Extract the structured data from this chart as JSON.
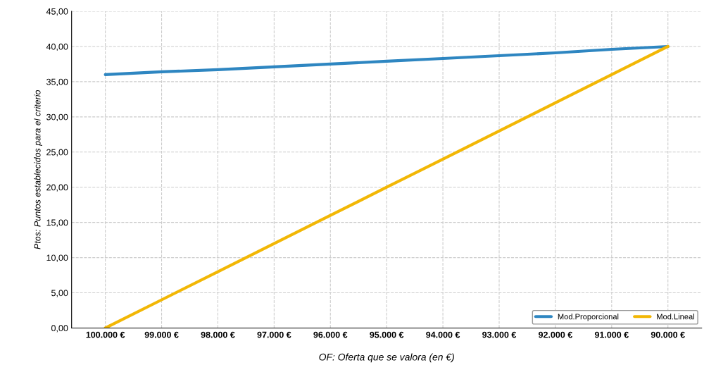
{
  "chart_data": {
    "type": "line",
    "xlabel": "OF: Oferta que se valora (en €)",
    "ylabel": "Ptos: Puntos establecidos para el criterio",
    "categories": [
      "100.000 €",
      "99.000 €",
      "98.000 €",
      "97.000 €",
      "96.000 €",
      "95.000 €",
      "94.000 €",
      "93.000 €",
      "92.000 €",
      "91.000 €",
      "90.000 €"
    ],
    "series": [
      {
        "name": "Mod.Proporcional",
        "color": "#2e86c1",
        "values": [
          36.0,
          36.4,
          36.7,
          37.1,
          37.5,
          37.9,
          38.3,
          38.7,
          39.1,
          39.6,
          40.0
        ]
      },
      {
        "name": "Mod.Lineal",
        "color": "#f2b705",
        "values": [
          0,
          4,
          8,
          12,
          16,
          20,
          24,
          28,
          32,
          36,
          40
        ]
      }
    ],
    "ylim": [
      0,
      45
    ],
    "yticks": [
      {
        "value": 0,
        "label": "0,00"
      },
      {
        "value": 5,
        "label": "5,00"
      },
      {
        "value": 10,
        "label": "10,00"
      },
      {
        "value": 15,
        "label": "15,00"
      },
      {
        "value": 20,
        "label": "20,00"
      },
      {
        "value": 25,
        "label": "25,00"
      },
      {
        "value": 30,
        "label": "30,00"
      },
      {
        "value": 35,
        "label": "35,00"
      },
      {
        "value": 40,
        "label": "40,00"
      },
      {
        "value": 45,
        "label": "45,00"
      }
    ],
    "grid": true,
    "legend": "bottom right",
    "marker": "none",
    "line_style": "solid"
  }
}
